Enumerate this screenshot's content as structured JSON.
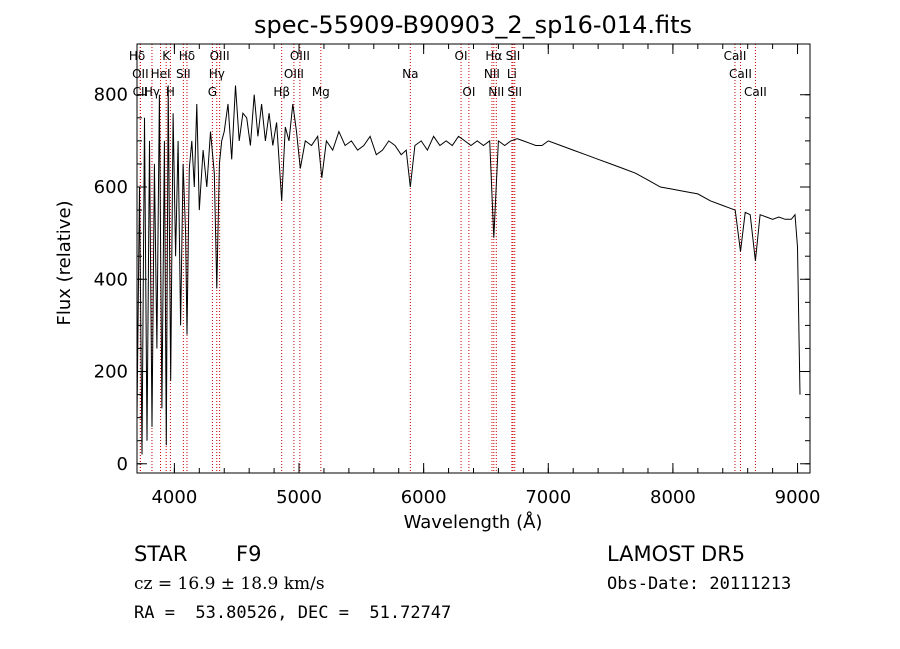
{
  "chart_data": {
    "type": "line",
    "title": "spec-55909-B90903_2_sp16-014.fits",
    "xlabel": "Wavelength (Å)",
    "ylabel": "Flux (relative)",
    "xlim": [
      3700,
      9100
    ],
    "ylim": [
      -20,
      910
    ],
    "xticks": [
      4000,
      5000,
      6000,
      7000,
      8000,
      9000
    ],
    "yticks": [
      0,
      200,
      400,
      600,
      800
    ],
    "grid": false,
    "series": [
      {
        "name": "",
        "x": [
          3700,
          3720,
          3740,
          3760,
          3780,
          3800,
          3820,
          3840,
          3860,
          3880,
          3900,
          3920,
          3935,
          3950,
          3970,
          3990,
          4010,
          4030,
          4050,
          4070,
          4090,
          4101,
          4120,
          4140,
          4160,
          4180,
          4200,
          4230,
          4260,
          4290,
          4320,
          4340,
          4361,
          4380,
          4400,
          4430,
          4460,
          4490,
          4520,
          4550,
          4580,
          4610,
          4640,
          4670,
          4700,
          4730,
          4760,
          4790,
          4820,
          4861,
          4890,
          4920,
          4950,
          4980,
          5010,
          5050,
          5100,
          5150,
          5183,
          5220,
          5270,
          5320,
          5370,
          5420,
          5470,
          5520,
          5570,
          5620,
          5670,
          5720,
          5770,
          5820,
          5860,
          5893,
          5930,
          5980,
          6030,
          6080,
          6130,
          6180,
          6230,
          6280,
          6330,
          6380,
          6430,
          6480,
          6530,
          6563,
          6600,
          6650,
          6700,
          6750,
          6800,
          6850,
          6900,
          6950,
          7000,
          7100,
          7200,
          7300,
          7400,
          7500,
          7600,
          7700,
          7800,
          7900,
          8000,
          8100,
          8200,
          8300,
          8400,
          8450,
          8500,
          8542,
          8580,
          8620,
          8662,
          8700,
          8750,
          8800,
          8850,
          8900,
          8950,
          8980,
          9000,
          9020
        ],
        "y": [
          100,
          600,
          20,
          750,
          50,
          700,
          80,
          650,
          250,
          800,
          120,
          700,
          40,
          820,
          180,
          760,
          450,
          700,
          300,
          650,
          500,
          280,
          640,
          700,
          600,
          780,
          550,
          680,
          600,
          720,
          630,
          380,
          650,
          700,
          720,
          780,
          660,
          820,
          700,
          760,
          750,
          690,
          800,
          710,
          780,
          700,
          760,
          690,
          740,
          570,
          730,
          700,
          780,
          720,
          640,
          700,
          690,
          710,
          620,
          700,
          680,
          720,
          690,
          700,
          680,
          690,
          710,
          670,
          680,
          700,
          690,
          670,
          680,
          600,
          690,
          700,
          680,
          710,
          690,
          700,
          690,
          710,
          700,
          690,
          700,
          690,
          700,
          490,
          700,
          690,
          700,
          705,
          700,
          695,
          690,
          690,
          700,
          690,
          680,
          670,
          660,
          650,
          640,
          630,
          615,
          600,
          595,
          590,
          585,
          570,
          560,
          555,
          550,
          460,
          545,
          540,
          440,
          540,
          535,
          530,
          535,
          530,
          530,
          540,
          470,
          150
        ]
      }
    ],
    "lines": [
      {
        "label": "Hδ",
        "x": 3700,
        "row": 0
      },
      {
        "label": "K",
        "x": 3934,
        "row": 0
      },
      {
        "label": "Hδ",
        "x": 4101,
        "row": 0
      },
      {
        "label": "OIII",
        "x": 4363,
        "row": 0
      },
      {
        "label": "OIII",
        "x": 5007,
        "row": 0
      },
      {
        "label": "OI",
        "x": 6300,
        "row": 0
      },
      {
        "label": "Hα",
        "x": 6563,
        "row": 0
      },
      {
        "label": "SII",
        "x": 6717,
        "row": 0
      },
      {
        "label": "CaII",
        "x": 8498,
        "row": 0
      },
      {
        "label": "OII",
        "x": 3727,
        "row": 1
      },
      {
        "label": "HeI",
        "x": 3889,
        "row": 1
      },
      {
        "label": "SII",
        "x": 4072,
        "row": 1
      },
      {
        "label": "Hγ",
        "x": 4340,
        "row": 1
      },
      {
        "label": "OIII",
        "x": 4959,
        "row": 1
      },
      {
        "label": "Na",
        "x": 5893,
        "row": 1
      },
      {
        "label": "NII",
        "x": 6548,
        "row": 1
      },
      {
        "label": "Li",
        "x": 6708,
        "row": 1
      },
      {
        "label": "CaII",
        "x": 8542,
        "row": 1
      },
      {
        "label": "CII",
        "x": 3727,
        "row": 2
      },
      {
        "label": "Hγ",
        "x": 3820,
        "row": 2
      },
      {
        "label": "H",
        "x": 3968,
        "row": 2
      },
      {
        "label": "G",
        "x": 4305,
        "row": 2
      },
      {
        "label": "Hβ",
        "x": 4861,
        "row": 2
      },
      {
        "label": "Mg",
        "x": 5175,
        "row": 2
      },
      {
        "label": "OI",
        "x": 6363,
        "row": 2
      },
      {
        "label": "NII",
        "x": 6583,
        "row": 2
      },
      {
        "label": "SII",
        "x": 6731,
        "row": 2
      },
      {
        "label": "CaII",
        "x": 8662,
        "row": 2
      }
    ]
  },
  "info": {
    "object_class": "STAR",
    "subclass": "F9",
    "survey": "LAMOST DR5",
    "cz": "cz = 16.9 ± 18.9 km/s",
    "obs_date": "Obs-Date: 20111213",
    "coords": "RA =  53.80526, DEC =  51.72747"
  },
  "colors": {
    "line_marker": "#cc0000",
    "spectrum": "#000000"
  }
}
